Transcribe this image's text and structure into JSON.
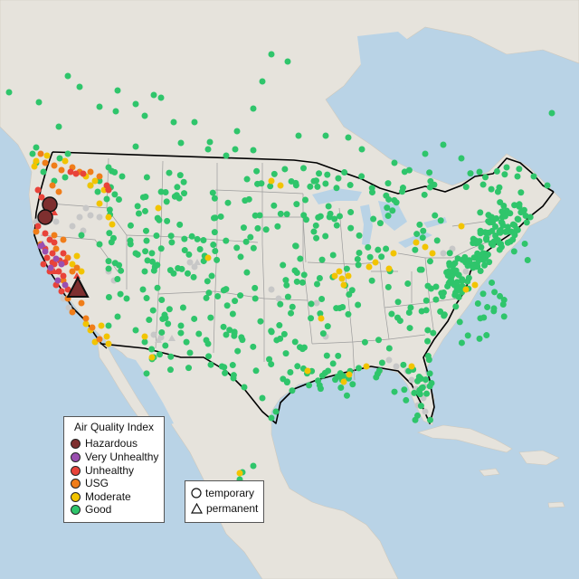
{
  "legend": {
    "title": "Air Quality Index",
    "categories": [
      {
        "label": "Hazardous",
        "color": "#7e2f2f"
      },
      {
        "label": "Very Unhealthy",
        "color": "#9a4fb0"
      },
      {
        "label": "Unhealthy",
        "color": "#e8433a"
      },
      {
        "label": "USG",
        "color": "#f07d19"
      },
      {
        "label": "Moderate",
        "color": "#f2c400"
      },
      {
        "label": "Good",
        "color": "#2fc56b"
      }
    ]
  },
  "type_legend": {
    "temporary": "temporary",
    "permanent": "permanent"
  },
  "colors": {
    "water": "#b9d3e6",
    "land": "#e6e3dc",
    "border": "#000000",
    "no_data": "#c7c7c7"
  }
}
